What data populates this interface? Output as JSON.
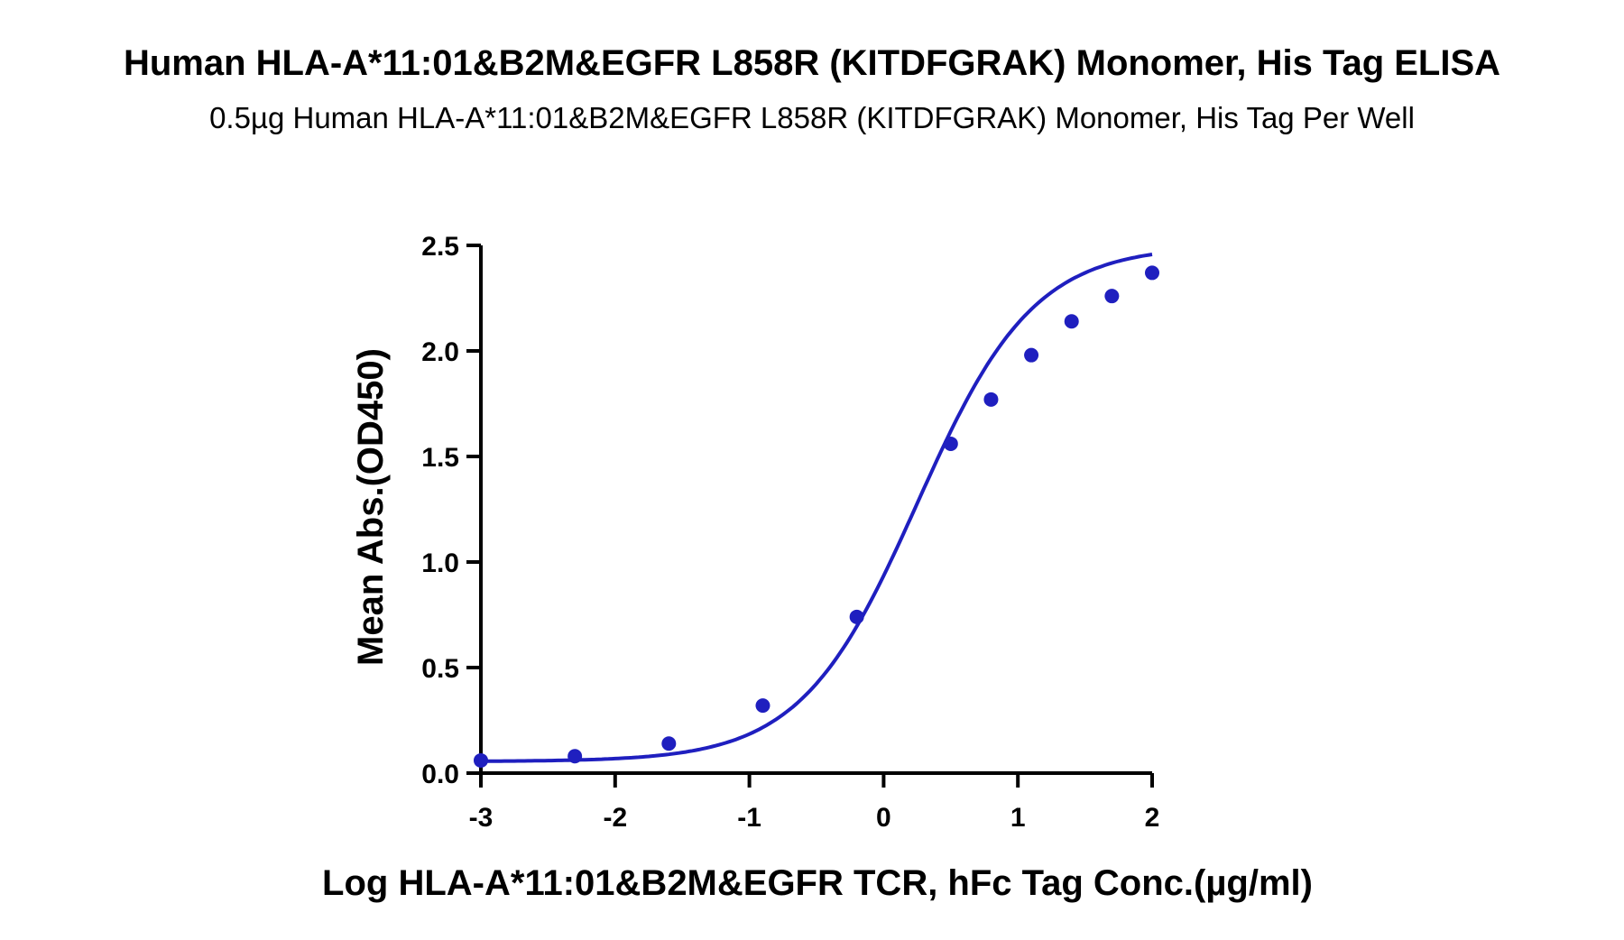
{
  "chart_data": {
    "type": "scatter",
    "title": "Human HLA-A*11:01&B2M&EGFR L858R (KITDFGRAK) Monomer, His Tag ELISA",
    "subtitle": "0.5µg Human HLA-A*11:01&B2M&EGFR L858R (KITDFGRAK) Monomer, His Tag Per Well",
    "xlabel": "Log HLA-A*11:01&B2M&EGFR TCR, hFc Tag Conc.(µg/ml)",
    "ylabel": "Mean Abs.(OD450)",
    "xlim": [
      -3,
      2
    ],
    "ylim": [
      0,
      2.5
    ],
    "x_ticks": [
      "-3",
      "-2",
      "-1",
      "0",
      "1",
      "2"
    ],
    "y_ticks": [
      "0.0",
      "0.5",
      "1.0",
      "1.5",
      "2.0",
      "2.5"
    ],
    "colors": {
      "series": "#1f1fbf",
      "axis": "#000000"
    },
    "series": [
      {
        "x": [
          -3.0,
          -2.3,
          -1.6,
          -0.9,
          -0.2,
          0.5,
          0.8,
          1.1,
          1.4,
          1.7,
          2.0
        ],
        "y": [
          0.06,
          0.08,
          0.14,
          0.32,
          0.74,
          1.56,
          1.77,
          1.98,
          2.14,
          2.26,
          2.37
        ]
      }
    ],
    "fit_curve": {
      "model": "4PL",
      "bottom": 0.055,
      "top": 2.5,
      "logEC50": 0.25,
      "hill": 1.0
    }
  }
}
